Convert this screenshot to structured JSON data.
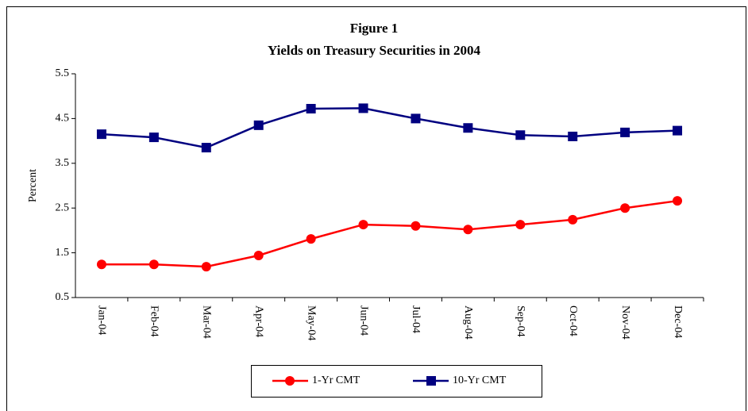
{
  "chart_data": {
    "type": "line",
    "title": "Figure 1",
    "subtitle": "Yields on Treasury Securities in 2004",
    "y_label": "Percent",
    "categories": [
      "Jan-04",
      "Feb-04",
      "Mar-04",
      "Apr-04",
      "May-04",
      "Jun-04",
      "Jul-04",
      "Aug-04",
      "Sep-04",
      "Oct-04",
      "Nov-04",
      "Dec-04"
    ],
    "series": [
      {
        "name": "1-Yr CMT",
        "color": "#ff0000",
        "marker": "circle",
        "values": [
          1.24,
          1.24,
          1.19,
          1.44,
          1.81,
          2.13,
          2.1,
          2.02,
          2.13,
          2.24,
          2.5,
          2.66
        ]
      },
      {
        "name": "10-Yr CMT",
        "color": "#000080",
        "marker": "square",
        "values": [
          4.15,
          4.08,
          3.85,
          4.35,
          4.72,
          4.73,
          4.5,
          4.29,
          4.13,
          4.1,
          4.19,
          4.23
        ]
      }
    ],
    "ylim": [
      0.5,
      5.5
    ],
    "yticks": [
      0.5,
      1.5,
      2.5,
      3.5,
      4.5,
      5.5
    ],
    "grid": false,
    "legend": "bottom"
  }
}
